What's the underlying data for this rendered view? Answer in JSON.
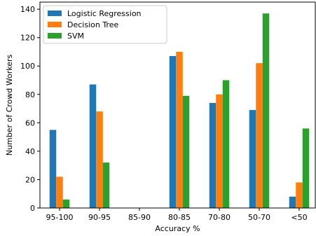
{
  "chart_data": {
    "type": "bar",
    "title": "",
    "xlabel": "Accuracy %",
    "ylabel": "Number of Crowd Workers",
    "categories": [
      "95-100",
      "90-95",
      "85-90",
      "80-85",
      "70-80",
      "50-70",
      "<50"
    ],
    "ylim": [
      0,
      145
    ],
    "yticks": [
      0,
      20,
      40,
      60,
      80,
      100,
      120,
      140
    ],
    "grid": false,
    "legend_position": "top-left",
    "series": [
      {
        "name": "Logistic Regression",
        "color": "#1f77b4",
        "values": [
          55,
          87,
          0,
          107,
          74,
          69,
          8
        ]
      },
      {
        "name": "Decision Tree",
        "color": "#ff7f0e",
        "values": [
          22,
          68,
          0,
          110,
          80,
          102,
          18
        ]
      },
      {
        "name": "SVM",
        "color": "#2ca02c",
        "values": [
          6,
          32,
          0,
          79,
          90,
          137,
          56
        ]
      }
    ]
  }
}
